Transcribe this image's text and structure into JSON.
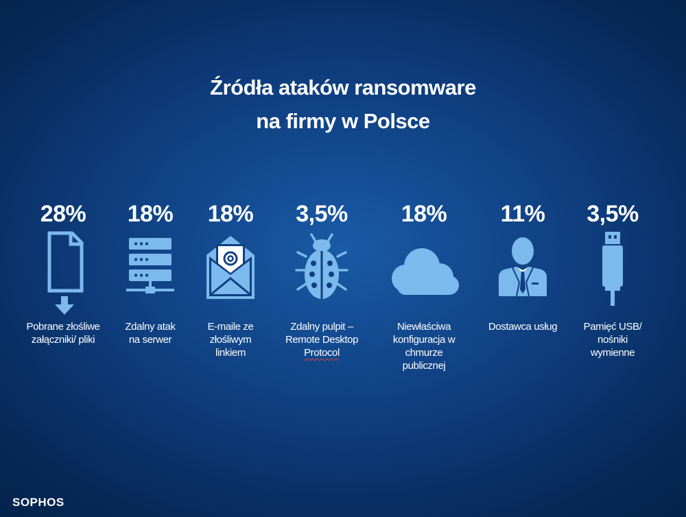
{
  "title": {
    "line1": "Źródła ataków ransomware",
    "line2": "na firmy w Polsce"
  },
  "icon_color": "#7cb9ec",
  "items": [
    {
      "value": "28%",
      "label": [
        "Pobrane złośliwe",
        "załączniki/ pliki"
      ],
      "icon": "document-download-icon"
    },
    {
      "value": "18%",
      "label": [
        "Zdalny atak",
        "na serwer"
      ],
      "icon": "server-icon"
    },
    {
      "value": "18%",
      "label": [
        "E-maile ze",
        "złośliwym",
        "linkiem"
      ],
      "icon": "email-at-icon"
    },
    {
      "value": "3,5%",
      "label": [
        "Zdalny pulpit –",
        "Remote Desktop",
        "Protocol"
      ],
      "icon": "bug-icon"
    },
    {
      "value": "18%",
      "label": [
        "Niewłaściwa",
        "konfiguracja w chmurze",
        "publicznej"
      ],
      "icon": "cloud-icon"
    },
    {
      "value": "11%",
      "label": [
        "Dostawca usług"
      ],
      "icon": "person-icon"
    },
    {
      "value": "3,5%",
      "label": [
        "Pamięć USB/ nośniki",
        "wymienne"
      ],
      "icon": "usb-icon"
    }
  ],
  "logo": "SOPHOS"
}
